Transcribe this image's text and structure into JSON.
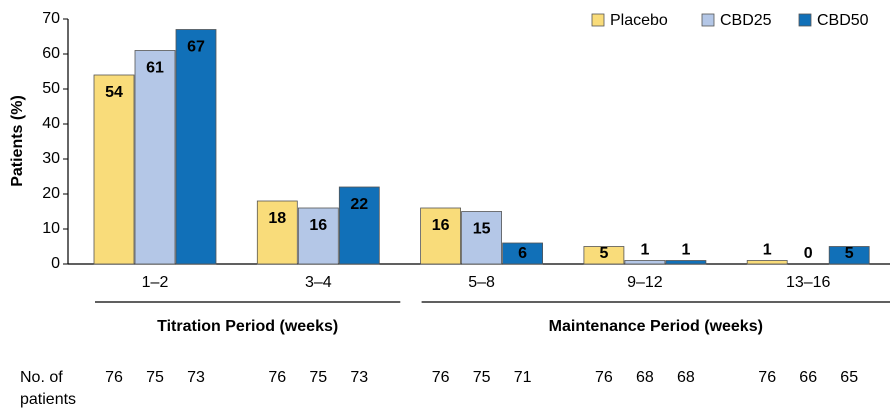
{
  "chart_data": {
    "type": "bar",
    "y_label": "Patients (%)",
    "categories": [
      "1–2",
      "3–4",
      "5–8",
      "9–12",
      "13–16"
    ],
    "series": [
      {
        "name": "Placebo",
        "color": "#f9dc7a",
        "values": [
          54,
          18,
          16,
          5,
          1
        ]
      },
      {
        "name": "CBD25",
        "color": "#b4c7e7",
        "values": [
          61,
          16,
          15,
          1,
          0
        ]
      },
      {
        "name": "CBD50",
        "color": "#1170b8",
        "values": [
          67,
          22,
          6,
          1,
          5
        ]
      }
    ],
    "ylim": [
      0,
      70
    ],
    "yticks": [
      0,
      10,
      20,
      30,
      40,
      50,
      60,
      70
    ],
    "legend": "top-right",
    "periods": [
      {
        "label": "Titration Period (weeks)",
        "categories": [
          0,
          1
        ]
      },
      {
        "label": "Maintenance Period (weeks)",
        "categories": [
          2,
          4
        ]
      }
    ],
    "patients": {
      "label": [
        "No. of",
        "patients"
      ],
      "values": [
        [
          76,
          75,
          73
        ],
        [
          76,
          75,
          73
        ],
        [
          76,
          75,
          71
        ],
        [
          76,
          68,
          68
        ],
        [
          76,
          66,
          65
        ]
      ]
    }
  }
}
